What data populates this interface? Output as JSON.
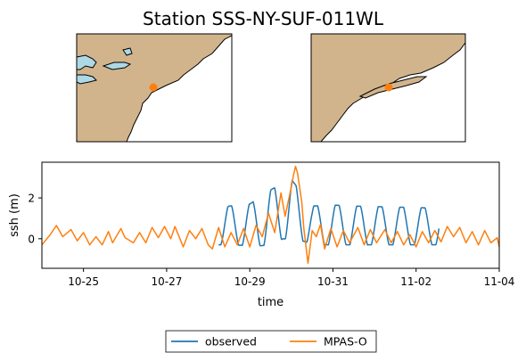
{
  "chart_data": {
    "type": "line",
    "title": "Station SSS-NY-SUF-011WL",
    "xlabel": "time",
    "ylabel": "ssh (m)",
    "x_unit": "days since 2012-10-24 00:00",
    "xlim": [
      0,
      11
    ],
    "ylim": [
      -1.45,
      3.75
    ],
    "x_ticks": [
      1,
      3,
      5,
      7,
      9,
      11
    ],
    "x_tick_labels": [
      "10-25",
      "10-27",
      "10-29",
      "10-31",
      "11-02",
      "11-04"
    ],
    "y_ticks": [
      0,
      2
    ],
    "y_tick_labels": [
      "0",
      "2"
    ],
    "grid": false,
    "legend": {
      "placement": "bottom-center",
      "columns": 2
    },
    "series": [
      {
        "name": "observed",
        "color": "#1f77b4",
        "start": 4.25,
        "end": 9.55,
        "period": 0.517,
        "phase": 4.0,
        "peaks": [
          [
            4.25,
            1.2
          ],
          [
            4.5,
            1.6
          ],
          [
            5.0,
            1.7
          ],
          [
            5.55,
            2.45
          ],
          [
            5.85,
            2.75
          ],
          [
            6.0,
            2.9
          ],
          [
            6.5,
            1.6
          ],
          [
            7.0,
            1.65
          ],
          [
            7.5,
            1.6
          ],
          [
            8.5,
            1.55
          ],
          [
            9.55,
            1.5
          ]
        ],
        "troughs": [
          [
            4.25,
            -0.3
          ],
          [
            4.5,
            -0.3
          ],
          [
            5.2,
            -0.35
          ],
          [
            5.55,
            -0.3
          ],
          [
            5.8,
            0.0
          ],
          [
            6.25,
            -0.1
          ],
          [
            6.6,
            -0.3
          ],
          [
            7.5,
            -0.3
          ],
          [
            9.55,
            -0.3
          ]
        ]
      },
      {
        "name": "MPAS-O",
        "color": "#ff7f0e",
        "points": [
          [
            0,
            -0.3
          ],
          [
            0.2,
            0.2
          ],
          [
            0.35,
            0.65
          ],
          [
            0.5,
            0.1
          ],
          [
            0.7,
            0.45
          ],
          [
            0.85,
            -0.1
          ],
          [
            1.0,
            0.3
          ],
          [
            1.15,
            -0.3
          ],
          [
            1.3,
            0.1
          ],
          [
            1.45,
            -0.3
          ],
          [
            1.6,
            0.35
          ],
          [
            1.7,
            -0.2
          ],
          [
            1.9,
            0.5
          ],
          [
            2.0,
            0.05
          ],
          [
            2.2,
            -0.2
          ],
          [
            2.35,
            0.3
          ],
          [
            2.5,
            -0.2
          ],
          [
            2.65,
            0.55
          ],
          [
            2.8,
            0.05
          ],
          [
            2.95,
            0.6
          ],
          [
            3.1,
            0.0
          ],
          [
            3.2,
            0.6
          ],
          [
            3.4,
            -0.4
          ],
          [
            3.55,
            0.4
          ],
          [
            3.7,
            0.0
          ],
          [
            3.85,
            0.5
          ],
          [
            4.0,
            -0.3
          ],
          [
            4.1,
            -0.5
          ],
          [
            4.25,
            0.55
          ],
          [
            4.4,
            -0.4
          ],
          [
            4.55,
            0.3
          ],
          [
            4.7,
            -0.3
          ],
          [
            4.85,
            0.5
          ],
          [
            5.0,
            -0.4
          ],
          [
            5.15,
            0.65
          ],
          [
            5.3,
            0.1
          ],
          [
            5.45,
            1.25
          ],
          [
            5.6,
            0.3
          ],
          [
            5.75,
            2.25
          ],
          [
            5.85,
            1.1
          ],
          [
            6.0,
            2.55
          ],
          [
            6.05,
            3.1
          ],
          [
            6.1,
            3.55
          ],
          [
            6.15,
            3.2
          ],
          [
            6.25,
            1.8
          ],
          [
            6.3,
            0.5
          ],
          [
            6.4,
            -1.2
          ],
          [
            6.5,
            0.4
          ],
          [
            6.6,
            0.1
          ],
          [
            6.7,
            0.7
          ],
          [
            6.8,
            -0.5
          ],
          [
            6.95,
            0.5
          ],
          [
            7.1,
            -0.4
          ],
          [
            7.25,
            0.4
          ],
          [
            7.4,
            -0.2
          ],
          [
            7.6,
            0.55
          ],
          [
            7.75,
            -0.3
          ],
          [
            7.9,
            0.45
          ],
          [
            8.05,
            -0.2
          ],
          [
            8.25,
            0.45
          ],
          [
            8.4,
            -0.2
          ],
          [
            8.55,
            0.35
          ],
          [
            8.7,
            -0.3
          ],
          [
            8.85,
            0.2
          ],
          [
            9.0,
            -0.4
          ],
          [
            9.15,
            0.35
          ],
          [
            9.3,
            -0.2
          ],
          [
            9.45,
            0.4
          ],
          [
            9.6,
            -0.15
          ],
          [
            9.75,
            0.6
          ],
          [
            9.9,
            0.1
          ],
          [
            10.05,
            0.55
          ],
          [
            10.2,
            -0.2
          ],
          [
            10.35,
            0.35
          ],
          [
            10.5,
            -0.3
          ],
          [
            10.65,
            0.4
          ],
          [
            10.8,
            -0.2
          ],
          [
            10.95,
            0.05
          ],
          [
            11.0,
            -0.4
          ]
        ]
      }
    ]
  },
  "maps": [
    {
      "name": "regional",
      "land_color": "#d2b48c",
      "water_color": "#add8e6",
      "marker_color": "#ff7f0e"
    },
    {
      "name": "local",
      "land_color": "#d2b48c",
      "water_color": "#ffffff",
      "marker_color": "#ff7f0e"
    }
  ]
}
